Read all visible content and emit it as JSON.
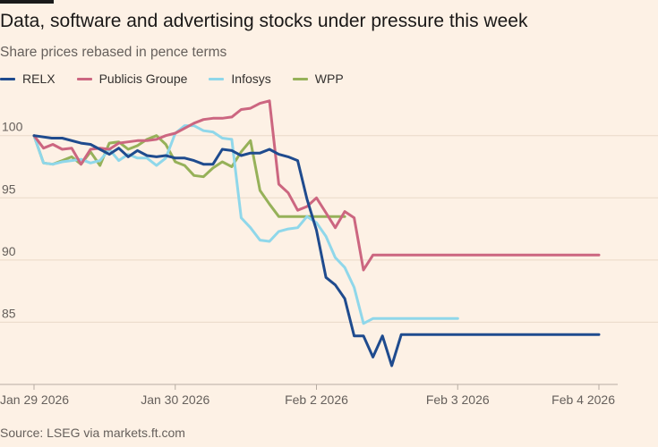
{
  "title": "Data, software and advertising stocks under pressure this week",
  "subtitle": "Share prices rebased in pence terms",
  "source": "Source: LSEG via markets.ft.com",
  "colors": {
    "background": "#fdf1e5",
    "grid": "#ead9c8",
    "axis": "#b7aca2",
    "tick_text": "#66605c"
  },
  "chart_data": {
    "type": "line",
    "x_domain": [
      0,
      4
    ],
    "ylim": [
      80,
      103
    ],
    "y_ticks": [
      85,
      90,
      95,
      100
    ],
    "x_ticks": [
      {
        "x": 0,
        "label": "Jan 29 2026"
      },
      {
        "x": 1,
        "label": "Jan 30 2026"
      },
      {
        "x": 2,
        "label": "Feb 2 2026"
      },
      {
        "x": 3,
        "label": "Feb 3 2026"
      },
      {
        "x": 4,
        "label": "Feb 4 2026"
      }
    ],
    "series": [
      {
        "name": "RELX",
        "color": "#1f4b8e",
        "x": [
          0,
          0.125,
          0.2,
          0.333,
          0.4,
          0.533,
          0.6,
          0.667,
          0.733,
          0.8,
          0.867,
          0.933,
          1.0,
          1.067,
          1.133,
          1.2,
          1.267,
          1.333,
          1.4,
          1.467,
          1.533,
          1.6,
          1.667,
          1.733,
          1.8,
          1.867,
          1.933,
          2.0,
          2.067,
          2.133,
          2.2,
          2.267,
          2.333,
          2.4,
          2.467,
          2.533,
          2.6,
          2.667,
          2.733,
          2.8,
          2.867,
          2.933,
          3.0,
          3.067,
          3.133,
          3.2,
          3.267,
          3.333,
          3.4,
          3.467,
          3.533,
          3.6,
          3.667,
          3.733,
          3.8,
          3.867,
          3.933,
          4.0
        ],
        "values": [
          100.0,
          99.8,
          99.8,
          99.4,
          99.3,
          98.5,
          99.0,
          98.3,
          98.8,
          98.4,
          98.3,
          98.4,
          98.2,
          98.2,
          98.0,
          97.7,
          97.7,
          98.9,
          98.8,
          98.4,
          98.6,
          98.6,
          98.9,
          98.5,
          98.3,
          98.0,
          94.9,
          92.4,
          88.6,
          88.0,
          86.9,
          83.9,
          83.9,
          82.2,
          83.9,
          81.5,
          84.0,
          84.0,
          84.0,
          84.0,
          84.0,
          84.0,
          84.0,
          84.0,
          84.0,
          84.0,
          84.0,
          84.0,
          84.0,
          84.0,
          84.0,
          84.0,
          84.0,
          84.0,
          84.0,
          84.0,
          84.0,
          84.0
        ]
      },
      {
        "name": "Publicis Groupe",
        "color": "#cc6680",
        "x": [
          0,
          0.067,
          0.133,
          0.2,
          0.267,
          0.333,
          0.4,
          0.467,
          0.533,
          0.6,
          0.667,
          0.733,
          0.8,
          0.867,
          0.933,
          1.0,
          1.067,
          1.133,
          1.2,
          1.267,
          1.333,
          1.4,
          1.467,
          1.533,
          1.6,
          1.667,
          1.733,
          1.8,
          1.867,
          1.933,
          2.0,
          2.067,
          2.133,
          2.2,
          2.267,
          2.333,
          2.4,
          2.467,
          2.533,
          2.6,
          2.667,
          2.733,
          2.8,
          2.867,
          2.933,
          3.0,
          3.067,
          3.133,
          3.2,
          3.267,
          3.333,
          3.4,
          3.467,
          3.533,
          3.6,
          3.667,
          3.733,
          3.8,
          3.867,
          3.933,
          4.0
        ],
        "values": [
          100.0,
          99.0,
          99.3,
          98.9,
          99.0,
          97.7,
          98.9,
          99.0,
          98.9,
          99.4,
          99.5,
          99.6,
          99.6,
          99.7,
          100.0,
          100.2,
          100.6,
          101.0,
          101.3,
          101.4,
          101.4,
          101.5,
          102.1,
          102.2,
          102.6,
          102.8,
          96.1,
          95.4,
          94.0,
          94.3,
          95.0,
          93.8,
          92.6,
          93.9,
          93.4,
          89.2,
          90.4,
          90.4,
          90.4,
          90.4,
          90.4,
          90.4,
          90.4,
          90.4,
          90.4,
          90.4,
          90.4,
          90.4,
          90.4,
          90.4,
          90.4,
          90.4,
          90.4,
          90.4,
          90.4,
          90.4,
          90.4,
          90.4,
          90.4,
          90.4,
          90.4
        ]
      },
      {
        "name": "Infosys",
        "color": "#8fd7ea",
        "x": [
          0,
          0.067,
          0.133,
          0.2,
          0.267,
          0.333,
          0.4,
          0.467,
          0.533,
          0.6,
          0.667,
          0.733,
          0.8,
          0.867,
          0.933,
          1.0,
          1.067,
          1.133,
          1.2,
          1.267,
          1.333,
          1.4,
          1.467,
          1.533,
          1.6,
          1.667,
          1.733,
          1.8,
          1.867,
          1.933,
          2.0,
          2.067,
          2.133,
          2.2,
          2.267,
          2.333,
          2.4,
          2.467,
          2.533,
          2.6,
          2.667,
          2.733,
          2.8,
          2.867,
          2.933,
          3.0
        ],
        "values": [
          100.0,
          97.8,
          97.7,
          97.9,
          98.0,
          98.1,
          97.8,
          98.0,
          98.9,
          98.0,
          98.5,
          98.2,
          98.2,
          97.6,
          98.2,
          100.2,
          100.8,
          100.8,
          100.4,
          100.3,
          99.8,
          99.7,
          93.4,
          92.6,
          91.6,
          91.5,
          92.3,
          92.5,
          92.6,
          93.5,
          93.0,
          91.9,
          90.2,
          89.4,
          87.8,
          84.9,
          85.3,
          85.3,
          85.3,
          85.3,
          85.3,
          85.3,
          85.3,
          85.3,
          85.3,
          85.3
        ]
      },
      {
        "name": "WPP",
        "color": "#96b159",
        "x": [
          0,
          0.067,
          0.133,
          0.2,
          0.267,
          0.333,
          0.4,
          0.467,
          0.533,
          0.6,
          0.667,
          0.733,
          0.8,
          0.867,
          0.933,
          1.0,
          1.067,
          1.133,
          1.2,
          1.267,
          1.333,
          1.4,
          1.467,
          1.533,
          1.6,
          1.667,
          1.733,
          1.8,
          1.867,
          1.933,
          2.0,
          2.067,
          2.133,
          2.2
        ],
        "values": [
          100.0,
          97.8,
          97.7,
          98.0,
          98.3,
          97.7,
          98.7,
          97.6,
          99.4,
          99.5,
          98.9,
          99.2,
          99.7,
          100.0,
          99.3,
          97.9,
          97.6,
          96.8,
          96.7,
          97.4,
          97.9,
          97.5,
          98.7,
          99.6,
          95.6,
          94.5,
          93.5,
          93.5,
          93.5,
          93.5,
          93.5,
          93.5,
          93.5,
          93.5
        ]
      }
    ]
  }
}
